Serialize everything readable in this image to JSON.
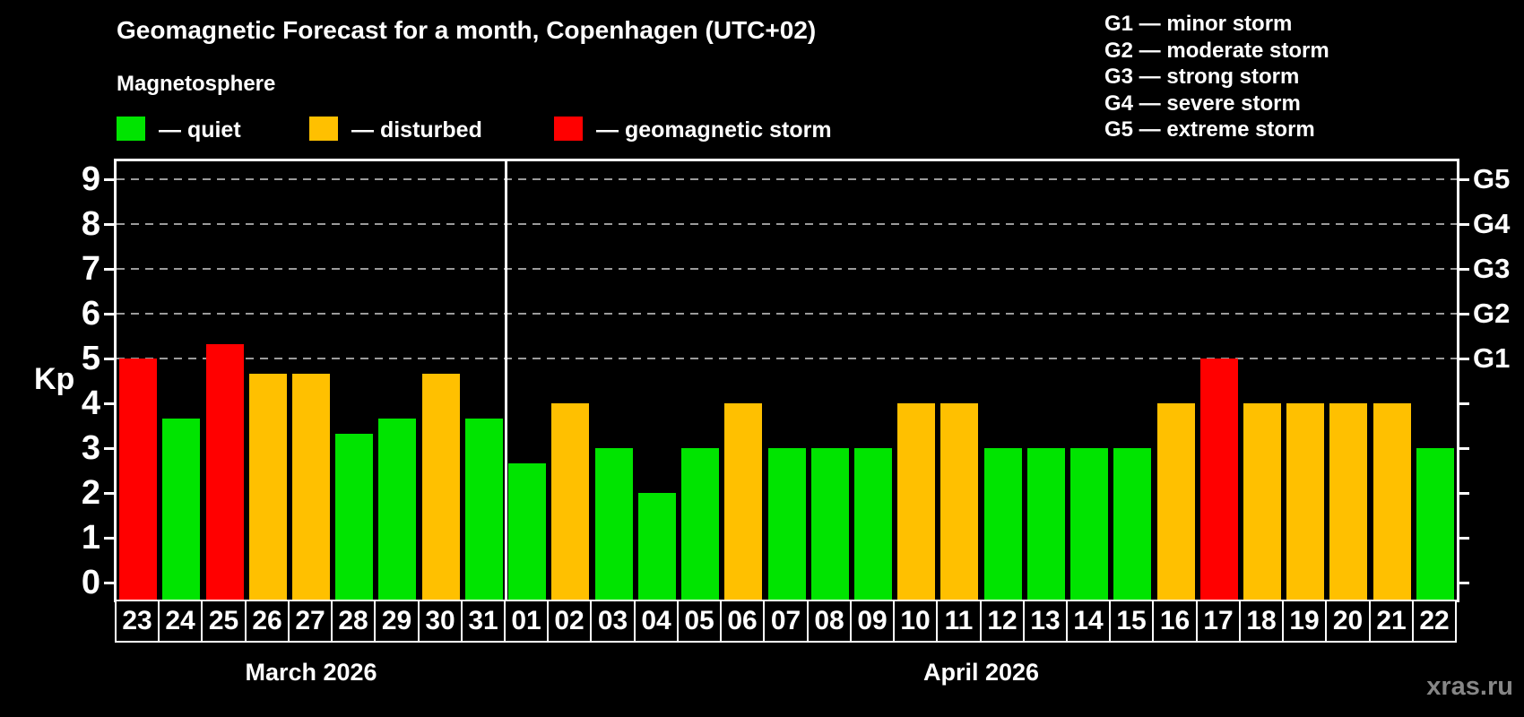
{
  "header": {
    "title": "Geomagnetic Forecast for a month, Copenhagen (UTC+02)",
    "subtitle": "Magnetosphere"
  },
  "g_legend": [
    "G1 — minor storm",
    "G2 — moderate storm",
    "G3 — strong storm",
    "G4 — severe storm",
    "G5 — extreme storm"
  ],
  "watermark": "xras.ru",
  "chart_data": {
    "type": "bar",
    "title": "Geomagnetic Forecast for a month, Copenhagen (UTC+02)",
    "ylabel": "Kp",
    "ylim": [
      0,
      9
    ],
    "y_ticks": [
      0,
      1,
      2,
      3,
      4,
      5,
      6,
      7,
      8,
      9
    ],
    "gridlines_kp": [
      5,
      6,
      7,
      8,
      9
    ],
    "grid_style": "dashed",
    "right_axis_labels": [
      {
        "label": "G1",
        "kp": 5
      },
      {
        "label": "G2",
        "kp": 6
      },
      {
        "label": "G3",
        "kp": 7
      },
      {
        "label": "G4",
        "kp": 8
      },
      {
        "label": "G5",
        "kp": 9
      }
    ],
    "status_colors": {
      "quiet": "#00e400",
      "disturbed": "#ffc000",
      "storm": "#ff0000"
    },
    "legend": [
      {
        "status": "quiet",
        "label": "— quiet"
      },
      {
        "status": "disturbed",
        "label": "— disturbed"
      },
      {
        "status": "storm",
        "label": "— geomagnetic storm"
      }
    ],
    "months": [
      {
        "label": "March 2026",
        "days": 9
      },
      {
        "label": "April 2026",
        "days": 22
      }
    ],
    "bars": [
      {
        "date": "23",
        "month": "March 2026",
        "kp": 5.0,
        "status": "storm"
      },
      {
        "date": "24",
        "month": "March 2026",
        "kp": 3.67,
        "status": "quiet"
      },
      {
        "date": "25",
        "month": "March 2026",
        "kp": 5.33,
        "status": "storm"
      },
      {
        "date": "26",
        "month": "March 2026",
        "kp": 4.67,
        "status": "disturbed"
      },
      {
        "date": "27",
        "month": "March 2026",
        "kp": 4.67,
        "status": "disturbed"
      },
      {
        "date": "28",
        "month": "March 2026",
        "kp": 3.33,
        "status": "quiet"
      },
      {
        "date": "29",
        "month": "March 2026",
        "kp": 3.67,
        "status": "quiet"
      },
      {
        "date": "30",
        "month": "March 2026",
        "kp": 4.67,
        "status": "disturbed"
      },
      {
        "date": "31",
        "month": "March 2026",
        "kp": 3.67,
        "status": "quiet"
      },
      {
        "date": "01",
        "month": "April 2026",
        "kp": 2.67,
        "status": "quiet"
      },
      {
        "date": "02",
        "month": "April 2026",
        "kp": 4.0,
        "status": "disturbed"
      },
      {
        "date": "03",
        "month": "April 2026",
        "kp": 3.0,
        "status": "quiet"
      },
      {
        "date": "04",
        "month": "April 2026",
        "kp": 2.0,
        "status": "quiet"
      },
      {
        "date": "05",
        "month": "April 2026",
        "kp": 3.0,
        "status": "quiet"
      },
      {
        "date": "06",
        "month": "April 2026",
        "kp": 4.0,
        "status": "disturbed"
      },
      {
        "date": "07",
        "month": "April 2026",
        "kp": 3.0,
        "status": "quiet"
      },
      {
        "date": "08",
        "month": "April 2026",
        "kp": 3.0,
        "status": "quiet"
      },
      {
        "date": "09",
        "month": "April 2026",
        "kp": 3.0,
        "status": "quiet"
      },
      {
        "date": "10",
        "month": "April 2026",
        "kp": 4.0,
        "status": "disturbed"
      },
      {
        "date": "11",
        "month": "April 2026",
        "kp": 4.0,
        "status": "disturbed"
      },
      {
        "date": "12",
        "month": "April 2026",
        "kp": 3.0,
        "status": "quiet"
      },
      {
        "date": "13",
        "month": "April 2026",
        "kp": 3.0,
        "status": "quiet"
      },
      {
        "date": "14",
        "month": "April 2026",
        "kp": 3.0,
        "status": "quiet"
      },
      {
        "date": "15",
        "month": "April 2026",
        "kp": 3.0,
        "status": "quiet"
      },
      {
        "date": "16",
        "month": "April 2026",
        "kp": 4.0,
        "status": "disturbed"
      },
      {
        "date": "17",
        "month": "April 2026",
        "kp": 5.0,
        "status": "storm"
      },
      {
        "date": "18",
        "month": "April 2026",
        "kp": 4.0,
        "status": "disturbed"
      },
      {
        "date": "19",
        "month": "April 2026",
        "kp": 4.0,
        "status": "disturbed"
      },
      {
        "date": "20",
        "month": "April 2026",
        "kp": 4.0,
        "status": "disturbed"
      },
      {
        "date": "21",
        "month": "April 2026",
        "kp": 4.0,
        "status": "disturbed"
      },
      {
        "date": "22",
        "month": "April 2026",
        "kp": 3.0,
        "status": "quiet"
      }
    ]
  }
}
